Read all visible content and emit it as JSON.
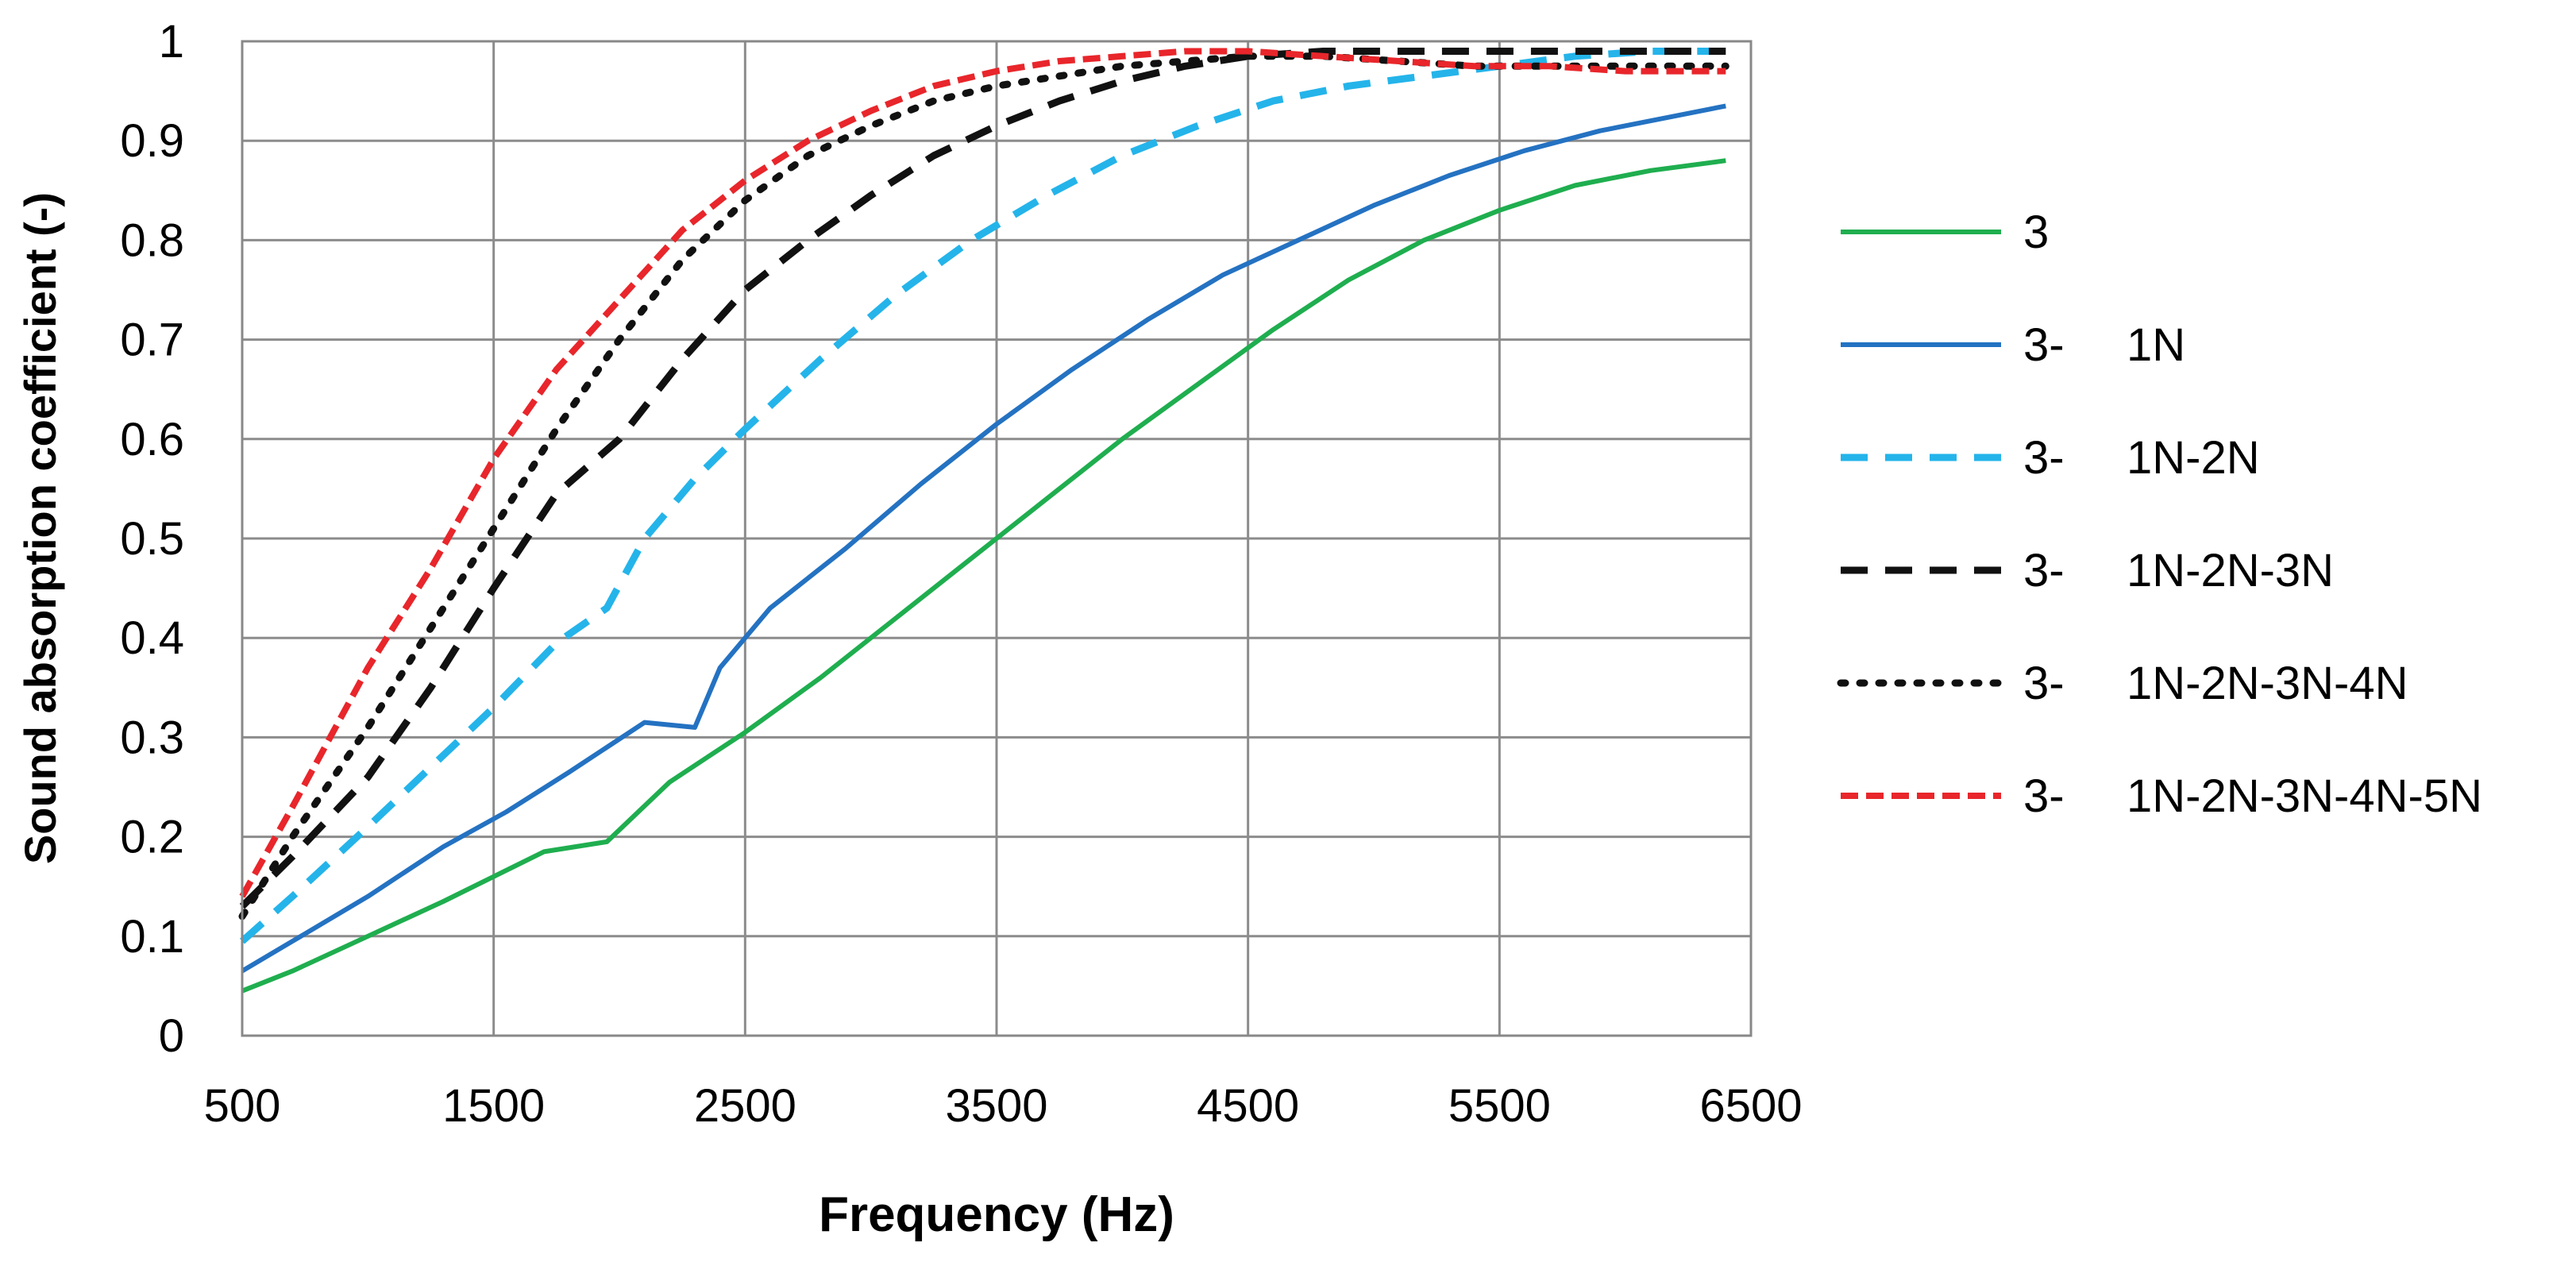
{
  "chart_data": {
    "type": "line",
    "title": "",
    "xlabel": "Frequency (Hz)",
    "ylabel": "Sound absorption coefficient  (-)",
    "xlim": [
      500,
      6500
    ],
    "ylim": [
      0,
      1
    ],
    "x_ticks": [
      500,
      1500,
      2500,
      3500,
      4500,
      5500,
      6500
    ],
    "x_tick_labels": [
      "500",
      "1500",
      "2500",
      "3500",
      "4500",
      "5500",
      "6500"
    ],
    "y_ticks": [
      0,
      0.1,
      0.2,
      0.3,
      0.4,
      0.5,
      0.6,
      0.7,
      0.8,
      0.9,
      1
    ],
    "y_tick_labels": [
      "0",
      "0.1",
      "0.2",
      "0.3",
      "0.4",
      "0.5",
      "0.6",
      "0.7",
      "0.8",
      "0.9",
      "1"
    ],
    "grid": true,
    "legend_position": "right",
    "series": [
      {
        "name": "3",
        "legend_parts": [
          "3",
          ""
        ],
        "color": "#1fae4f",
        "style": "solid",
        "x": [
          500,
          700,
          1000,
          1300,
          1500,
          1700,
          1950,
          2200,
          2500,
          2800,
          3100,
          3400,
          3700,
          4000,
          4300,
          4600,
          4900,
          5200,
          5500,
          5800,
          6100,
          6400
        ],
        "y": [
          0.045,
          0.065,
          0.1,
          0.135,
          0.16,
          0.185,
          0.195,
          0.255,
          0.305,
          0.36,
          0.42,
          0.48,
          0.54,
          0.6,
          0.655,
          0.71,
          0.76,
          0.8,
          0.83,
          0.855,
          0.87,
          0.88
        ]
      },
      {
        "name": "3-   1N",
        "legend_parts": [
          "3-",
          "1N"
        ],
        "color": "#2472c2",
        "style": "solid",
        "x": [
          500,
          700,
          1000,
          1300,
          1550,
          1800,
          2100,
          2300,
          2400,
          2600,
          2900,
          3200,
          3500,
          3800,
          4100,
          4400,
          4700,
          5000,
          5300,
          5600,
          5900,
          6200,
          6400
        ],
        "y": [
          0.065,
          0.095,
          0.14,
          0.19,
          0.225,
          0.265,
          0.315,
          0.31,
          0.37,
          0.43,
          0.49,
          0.555,
          0.615,
          0.67,
          0.72,
          0.765,
          0.8,
          0.835,
          0.865,
          0.89,
          0.91,
          0.925,
          0.935
        ]
      },
      {
        "name": "3-   1N-2N",
        "legend_parts": [
          "3-",
          "1N-2N"
        ],
        "color": "#24b4ea",
        "style": "dashed",
        "x": [
          500,
          700,
          1000,
          1250,
          1500,
          1750,
          1950,
          2100,
          2300,
          2500,
          2800,
          3100,
          3400,
          3700,
          4000,
          4300,
          4600,
          4900,
          5200,
          5500,
          5800,
          6100,
          6400
        ],
        "y": [
          0.095,
          0.14,
          0.21,
          0.27,
          0.33,
          0.395,
          0.43,
          0.5,
          0.56,
          0.61,
          0.68,
          0.745,
          0.8,
          0.845,
          0.885,
          0.915,
          0.94,
          0.955,
          0.965,
          0.975,
          0.985,
          0.99,
          0.99
        ]
      },
      {
        "name": "3-   1N-2N-3N",
        "legend_parts": [
          "3-",
          "1N-2N-3N"
        ],
        "color": "#111111",
        "style": "dashed",
        "x": [
          500,
          700,
          1000,
          1250,
          1500,
          1750,
          2000,
          2250,
          2500,
          2750,
          3000,
          3250,
          3500,
          3750,
          4000,
          4250,
          4500,
          4800,
          5100,
          5400,
          5700,
          6000,
          6400
        ],
        "y": [
          0.13,
          0.18,
          0.26,
          0.35,
          0.45,
          0.545,
          0.6,
          0.68,
          0.75,
          0.8,
          0.845,
          0.885,
          0.915,
          0.94,
          0.96,
          0.975,
          0.985,
          0.99,
          0.99,
          0.99,
          0.99,
          0.99,
          0.99
        ]
      },
      {
        "name": "3-   1N-2N-3N-4N",
        "legend_parts": [
          "3-",
          "1N-2N-3N-4N"
        ],
        "color": "#111111",
        "style": "dotted",
        "x": [
          500,
          700,
          1000,
          1250,
          1500,
          1750,
          2000,
          2250,
          2500,
          2750,
          3000,
          3250,
          3500,
          3750,
          4000,
          4250,
          4500,
          4800,
          5100,
          5400,
          5700,
          6000,
          6400
        ],
        "y": [
          0.12,
          0.2,
          0.31,
          0.41,
          0.51,
          0.61,
          0.7,
          0.78,
          0.84,
          0.885,
          0.915,
          0.94,
          0.955,
          0.965,
          0.975,
          0.98,
          0.985,
          0.985,
          0.98,
          0.975,
          0.975,
          0.975,
          0.975
        ]
      },
      {
        "name": "3-   1N-2N-3N-4N-5N",
        "legend_parts": [
          "3-",
          "1N-2N-3N-4N-5N"
        ],
        "color": "#e8262b",
        "style": "short-dashed",
        "x": [
          500,
          700,
          1000,
          1250,
          1500,
          1750,
          2000,
          2250,
          2500,
          2750,
          3000,
          3250,
          3500,
          3750,
          4000,
          4250,
          4500,
          4800,
          5100,
          5400,
          5700,
          6000,
          6400
        ],
        "y": [
          0.14,
          0.23,
          0.37,
          0.47,
          0.58,
          0.67,
          0.74,
          0.81,
          0.86,
          0.9,
          0.93,
          0.955,
          0.97,
          0.98,
          0.985,
          0.99,
          0.99,
          0.985,
          0.98,
          0.975,
          0.975,
          0.97,
          0.97
        ]
      }
    ]
  }
}
